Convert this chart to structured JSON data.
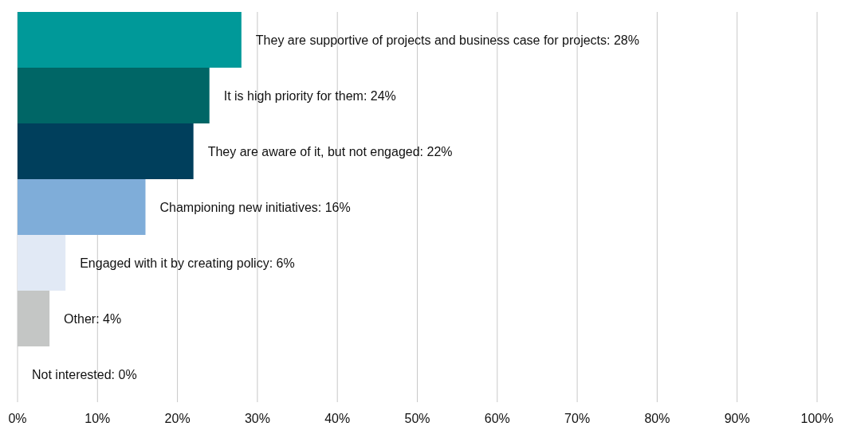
{
  "chart_data": {
    "type": "bar",
    "orientation": "horizontal",
    "categories": [
      null,
      null,
      null,
      null,
      null,
      null,
      null
    ],
    "values": [
      28,
      24,
      22,
      16,
      6,
      4,
      0
    ],
    "colors": [
      "#009999",
      "#006666",
      "#003f5c",
      "#7fadd9",
      "#e1e9f5",
      "#c4c6c5",
      "#c4c6c5"
    ],
    "value_labels": [
      "They are supportive of projects and business case for projects: 28%",
      "It is high priority for them: 24%",
      "They are aware of it, but not engaged: 22%",
      "Championing new initiatives: 16%",
      "Engaged with it by creating policy: 6%",
      "Other: 4%",
      "Not interested: 0%"
    ],
    "xlim": [
      0,
      100
    ],
    "xticks": [
      {
        "value": 0,
        "label": "0%"
      },
      {
        "value": 10,
        "label": "10%"
      },
      {
        "value": 20,
        "label": "20%"
      },
      {
        "value": 30,
        "label": "30%"
      },
      {
        "value": 40,
        "label": "40%"
      },
      {
        "value": 50,
        "label": "50%"
      },
      {
        "value": 60,
        "label": "60%"
      },
      {
        "value": 70,
        "label": "70%"
      },
      {
        "value": 80,
        "label": "80%"
      },
      {
        "value": 90,
        "label": "90%"
      },
      {
        "value": 100,
        "label": "100%"
      }
    ],
    "grid": "x"
  }
}
